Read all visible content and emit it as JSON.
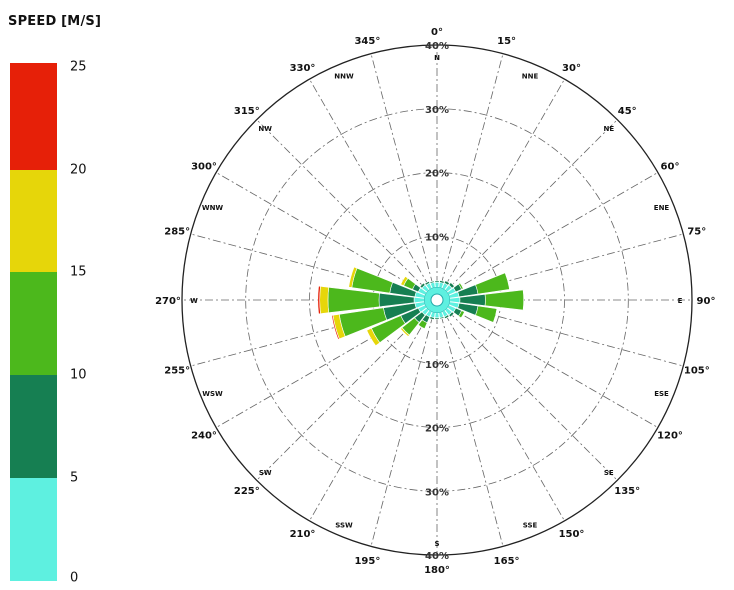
{
  "legend": {
    "title": "SPEED [M/S]",
    "ticks": [
      "25",
      "20",
      "15",
      "10",
      "5",
      "0"
    ],
    "bins": [
      {
        "range": "0-5",
        "color": "#5ef0e0"
      },
      {
        "range": "5-10",
        "color": "#167f52"
      },
      {
        "range": "10-15",
        "color": "#4cb81c"
      },
      {
        "range": "15-20",
        "color": "#e6d60a"
      },
      {
        "range": "20-25",
        "color": "#e62008"
      }
    ]
  },
  "chart_data": {
    "type": "wind-rose",
    "radial_labels": [
      "10%",
      "20%",
      "30%",
      "40%"
    ],
    "radial_max": 40,
    "angle_labels": [
      {
        "deg": 0,
        "text": "0°"
      },
      {
        "deg": 15,
        "text": "15°"
      },
      {
        "deg": 30,
        "text": "30°"
      },
      {
        "deg": 45,
        "text": "45°"
      },
      {
        "deg": 60,
        "text": "60°"
      },
      {
        "deg": 75,
        "text": "75°"
      },
      {
        "deg": 90,
        "text": "90°"
      },
      {
        "deg": 105,
        "text": "105°"
      },
      {
        "deg": 120,
        "text": "120°"
      },
      {
        "deg": 135,
        "text": "135°"
      },
      {
        "deg": 150,
        "text": "150°"
      },
      {
        "deg": 165,
        "text": "165°"
      },
      {
        "deg": 180,
        "text": "180°"
      },
      {
        "deg": 195,
        "text": "195°"
      },
      {
        "deg": 210,
        "text": "210°"
      },
      {
        "deg": 225,
        "text": "225°"
      },
      {
        "deg": 240,
        "text": "240°"
      },
      {
        "deg": 255,
        "text": "255°"
      },
      {
        "deg": 270,
        "text": "270°"
      },
      {
        "deg": 285,
        "text": "285°"
      },
      {
        "deg": 300,
        "text": "300°"
      },
      {
        "deg": 315,
        "text": "315°"
      },
      {
        "deg": 330,
        "text": "330°"
      },
      {
        "deg": 345,
        "text": "345°"
      }
    ],
    "compass_labels": [
      {
        "deg": 0,
        "text": "N"
      },
      {
        "deg": 22.5,
        "text": "NNE"
      },
      {
        "deg": 45,
        "text": "NE"
      },
      {
        "deg": 67.5,
        "text": "ENE"
      },
      {
        "deg": 90,
        "text": "E"
      },
      {
        "deg": 112.5,
        "text": "ESE"
      },
      {
        "deg": 135,
        "text": "SE"
      },
      {
        "deg": 157.5,
        "text": "SSE"
      },
      {
        "deg": 180,
        "text": "S"
      },
      {
        "deg": 202.5,
        "text": "SSW"
      },
      {
        "deg": 225,
        "text": "SW"
      },
      {
        "deg": 247.5,
        "text": "WSW"
      },
      {
        "deg": 270,
        "text": "W"
      },
      {
        "deg": 292.5,
        "text": "WNW"
      },
      {
        "deg": 315,
        "text": "NW"
      },
      {
        "deg": 337.5,
        "text": "NNW"
      }
    ],
    "calm_percent": 2,
    "directions": [
      0,
      15,
      30,
      45,
      60,
      75,
      90,
      105,
      120,
      135,
      150,
      165,
      180,
      195,
      210,
      225,
      240,
      255,
      270,
      285,
      300,
      315,
      330,
      345
    ],
    "sector_width_deg": 15,
    "series": [
      {
        "bin": "0-5",
        "values": [
          0.8,
          0.8,
          0.9,
          1.0,
          1.2,
          1.5,
          1.6,
          1.5,
          1.2,
          1.0,
          0.9,
          0.8,
          0.8,
          0.8,
          0.9,
          1.0,
          1.2,
          1.5,
          1.6,
          1.5,
          1.2,
          1.0,
          0.9,
          0.8
        ]
      },
      {
        "bin": "5-10",
        "values": [
          0.2,
          0.3,
          0.4,
          0.5,
          1.0,
          3.0,
          4.0,
          3.0,
          1.0,
          0.4,
          0.3,
          0.2,
          0.2,
          0.3,
          1.0,
          1.5,
          3.0,
          5.0,
          5.5,
          4.0,
          1.0,
          0.4,
          0.3,
          0.2
        ]
      },
      {
        "bin": "10-15",
        "values": [
          0,
          0,
          0,
          0.1,
          0.3,
          5.0,
          6.0,
          3.0,
          0.5,
          0,
          0,
          0,
          0,
          0,
          1.0,
          2.5,
          5.0,
          7.0,
          8.0,
          6.0,
          1.5,
          0,
          0,
          0
        ]
      },
      {
        "bin": "15-20",
        "values": [
          0,
          0,
          0,
          0,
          0,
          0,
          0,
          0,
          0,
          0,
          0,
          0,
          0,
          0,
          0,
          0.3,
          0.8,
          1.0,
          1.3,
          0.5,
          0.5,
          0,
          0,
          0
        ]
      },
      {
        "bin": "20-25",
        "values": [
          0,
          0,
          0,
          0,
          0,
          0,
          0,
          0,
          0,
          0,
          0,
          0,
          0,
          0,
          0,
          0,
          0,
          0.2,
          0.3,
          0,
          0,
          0,
          0,
          0
        ]
      }
    ]
  }
}
